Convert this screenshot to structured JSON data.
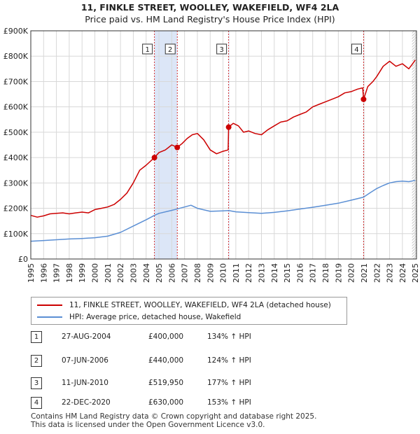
{
  "title_line1": "11, FINKLE STREET, WOOLLEY, WAKEFIELD, WF4 2LA",
  "title_line2": "Price paid vs. HM Land Registry's House Price Index (HPI)",
  "colors": {
    "property": "#cc0000",
    "hpi": "#5b8fd4",
    "shade": "#dce6f7",
    "grid": "#d8d8d8",
    "axis": "#333333"
  },
  "legend": [
    {
      "label": "11, FINKLE STREET, WOOLLEY, WAKEFIELD, WF4 2LA (detached house)",
      "color": "#cc0000"
    },
    {
      "label": "HPI: Average price, detached house, Wakefield",
      "color": "#5b8fd4"
    }
  ],
  "sales": [
    {
      "num": "1",
      "date": "27-AUG-2004",
      "price": "£400,000",
      "hpi": "134% ↑ HPI"
    },
    {
      "num": "2",
      "date": "07-JUN-2006",
      "price": "£440,000",
      "hpi": "124% ↑ HPI"
    },
    {
      "num": "3",
      "date": "11-JUN-2010",
      "price": "£519,950",
      "hpi": "177% ↑ HPI"
    },
    {
      "num": "4",
      "date": "22-DEC-2020",
      "price": "£630,000",
      "hpi": "153% ↑ HPI"
    }
  ],
  "footer_line1": "Contains HM Land Registry data © Crown copyright and database right 2025.",
  "footer_line2": "This data is licensed under the Open Government Licence v3.0.",
  "chart_data": {
    "type": "line",
    "title": "11, FINKLE STREET, WOOLLEY, WAKEFIELD, WF4 2LA",
    "subtitle": "Price paid vs. HM Land Registry's House Price Index (HPI)",
    "xlabel": "",
    "ylabel": "",
    "xlim": [
      1995,
      2025.1
    ],
    "ylim": [
      0,
      900000
    ],
    "grid": true,
    "legend_position": "below",
    "x_ticks": [
      1995,
      1996,
      1997,
      1998,
      1999,
      2000,
      2001,
      2002,
      2003,
      2004,
      2005,
      2006,
      2007,
      2008,
      2009,
      2010,
      2011,
      2012,
      2013,
      2014,
      2015,
      2016,
      2017,
      2018,
      2019,
      2020,
      2021,
      2022,
      2023,
      2024,
      2025
    ],
    "y_ticks": [
      {
        "value": 0,
        "label": "£0"
      },
      {
        "value": 100000,
        "label": "£100K"
      },
      {
        "value": 200000,
        "label": "£200K"
      },
      {
        "value": 300000,
        "label": "£300K"
      },
      {
        "value": 400000,
        "label": "£400K"
      },
      {
        "value": 500000,
        "label": "£500K"
      },
      {
        "value": 600000,
        "label": "£600K"
      },
      {
        "value": 700000,
        "label": "£700K"
      },
      {
        "value": 800000,
        "label": "£800K"
      },
      {
        "value": 900000,
        "label": "£900K"
      }
    ],
    "shaded_periods": [
      [
        2004.65,
        2006.43
      ],
      [
        2010.44,
        2010.5
      ],
      [
        2020.97,
        2021.02
      ]
    ],
    "hatched_period": [
      2024.75,
      2025.1
    ],
    "sale_markers": [
      {
        "label": "1",
        "x": 2004.65,
        "y": 400000
      },
      {
        "label": "2",
        "x": 2006.43,
        "y": 440000
      },
      {
        "label": "3",
        "x": 2010.44,
        "y": 519950
      },
      {
        "label": "4",
        "x": 2020.97,
        "y": 630000
      }
    ],
    "series": [
      {
        "name": "11, FINKLE STREET, WOOLLEY, WAKEFIELD, WF4 2LA (detached house)",
        "color": "#cc0000",
        "x": [
          1995,
          1995.5,
          1996,
          1996.5,
          1997,
          1997.5,
          1998,
          1998.5,
          1999,
          1999.5,
          2000,
          2000.5,
          2001,
          2001.5,
          2002,
          2002.5,
          2003,
          2003.5,
          2004,
          2004.65,
          2005,
          2005.5,
          2006,
          2006.43,
          2006.8,
          2007.2,
          2007.6,
          2008,
          2008.5,
          2009,
          2009.5,
          2010,
          2010.4,
          2010.44,
          2010.8,
          2011.2,
          2011.6,
          2012,
          2012.5,
          2013,
          2013.5,
          2014,
          2014.5,
          2015,
          2015.5,
          2016,
          2016.5,
          2017,
          2017.5,
          2018,
          2018.5,
          2019,
          2019.5,
          2020,
          2020.5,
          2020.9,
          2020.97,
          2021.3,
          2021.7,
          2022,
          2022.5,
          2023,
          2023.5,
          2024,
          2024.5,
          2024.8,
          2025
        ],
        "y": [
          172000,
          165000,
          170000,
          178000,
          180000,
          182000,
          178000,
          182000,
          185000,
          182000,
          195000,
          200000,
          205000,
          215000,
          235000,
          260000,
          300000,
          350000,
          370000,
          400000,
          420000,
          430000,
          450000,
          440000,
          455000,
          475000,
          490000,
          495000,
          470000,
          430000,
          415000,
          425000,
          430000,
          519950,
          535000,
          525000,
          500000,
          505000,
          495000,
          490000,
          510000,
          525000,
          540000,
          545000,
          560000,
          570000,
          580000,
          600000,
          610000,
          620000,
          630000,
          640000,
          655000,
          660000,
          670000,
          675000,
          630000,
          680000,
          700000,
          720000,
          760000,
          780000,
          760000,
          770000,
          750000,
          770000,
          785000
        ]
      },
      {
        "name": "HPI: Average price, detached house, Wakefield",
        "color": "#5b8fd4",
        "x": [
          1995,
          1996,
          1997,
          1998,
          1999,
          2000,
          2001,
          2002,
          2003,
          2004,
          2004.65,
          2005,
          2006,
          2007,
          2007.5,
          2008,
          2009,
          2010,
          2010.44,
          2011,
          2012,
          2013,
          2014,
          2015,
          2016,
          2017,
          2018,
          2019,
          2020,
          2020.97,
          2021.5,
          2022,
          2022.5,
          2023,
          2023.5,
          2024,
          2024.5,
          2025
        ],
        "y": [
          70000,
          73000,
          76000,
          79000,
          81000,
          84000,
          90000,
          105000,
          130000,
          155000,
          172000,
          180000,
          192000,
          205000,
          212000,
          200000,
          188000,
          190000,
          191000,
          186000,
          183000,
          180000,
          184000,
          190000,
          197000,
          204000,
          212000,
          220000,
          232000,
          244000,
          262000,
          278000,
          290000,
          300000,
          305000,
          307000,
          305000,
          310000
        ]
      }
    ]
  }
}
